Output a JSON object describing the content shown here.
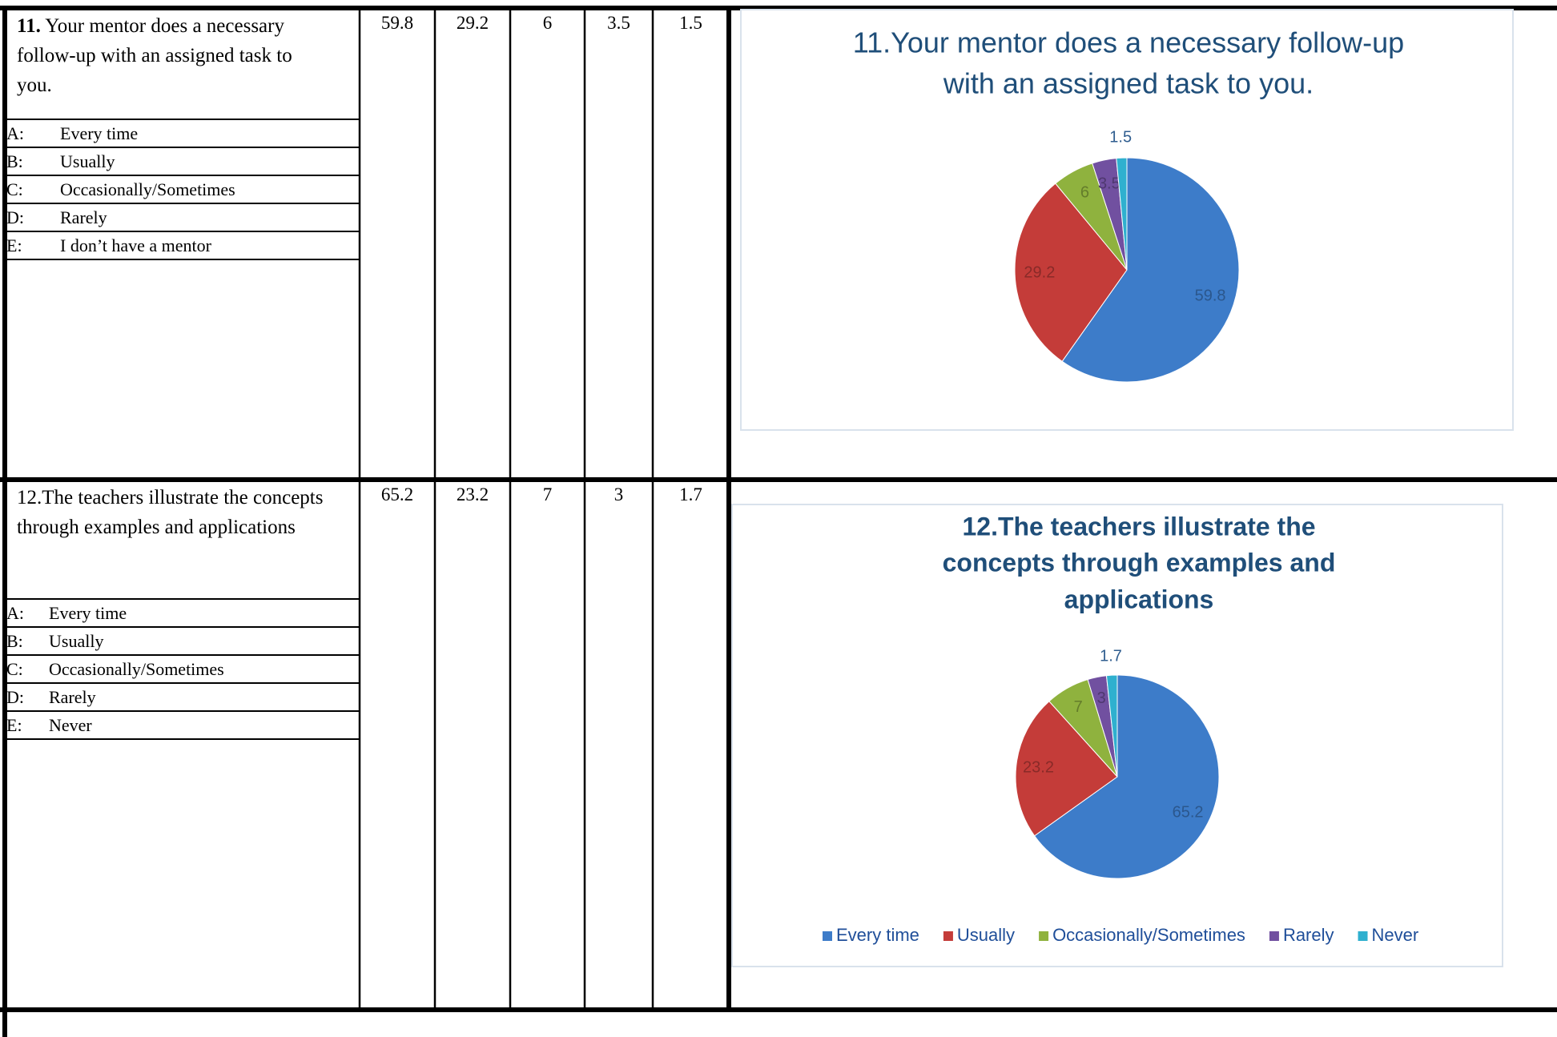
{
  "rows": [
    {
      "number": "11.",
      "question": " Your mentor does a necessary follow-up with an assigned task to you.",
      "options": [
        {
          "letter": "A:",
          "text": "Every time"
        },
        {
          "letter": "B:",
          "text": "Usually"
        },
        {
          "letter": "C:",
          "text": "Occasionally/Sometimes"
        },
        {
          "letter": "D:",
          "text": "Rarely"
        },
        {
          "letter": "E:",
          "text": "I don’t have a mentor"
        }
      ]
    },
    {
      "number": "12.",
      "question": "The teachers illustrate the concepts through examples and applications",
      "options": [
        {
          "letter": "A:",
          "text": "Every time"
        },
        {
          "letter": "B:",
          "text": "Usually"
        },
        {
          "letter": "C:",
          "text": "Occasionally/Sometimes"
        },
        {
          "letter": "D:",
          "text": "Rarely"
        },
        {
          "letter": "E:",
          "text": "Never"
        }
      ]
    }
  ],
  "chart_data": [
    {
      "type": "pie",
      "title": [
        "11.Your mentor does a necessary follow-up",
        "with an  assigned task to you."
      ],
      "values": [
        59.8,
        29.2,
        6,
        3.5,
        1.5
      ],
      "colors": [
        "#3d7cc9",
        "#c43c39",
        "#8fb23e",
        "#7150a0",
        "#2fb0cf"
      ]
    },
    {
      "type": "pie",
      "title": [
        "12.The teachers illustrate the",
        "concepts through examples and",
        "applications"
      ],
      "categories": [
        "Every time",
        "Usually",
        "Occasionally/Sometimes",
        "Rarely",
        "Never"
      ],
      "values": [
        65.2,
        23.2,
        7,
        3,
        1.7
      ],
      "colors": [
        "#3d7cc9",
        "#c43c39",
        "#8fb23e",
        "#7150a0",
        "#2fb0cf"
      ],
      "legend": "bottom"
    }
  ]
}
